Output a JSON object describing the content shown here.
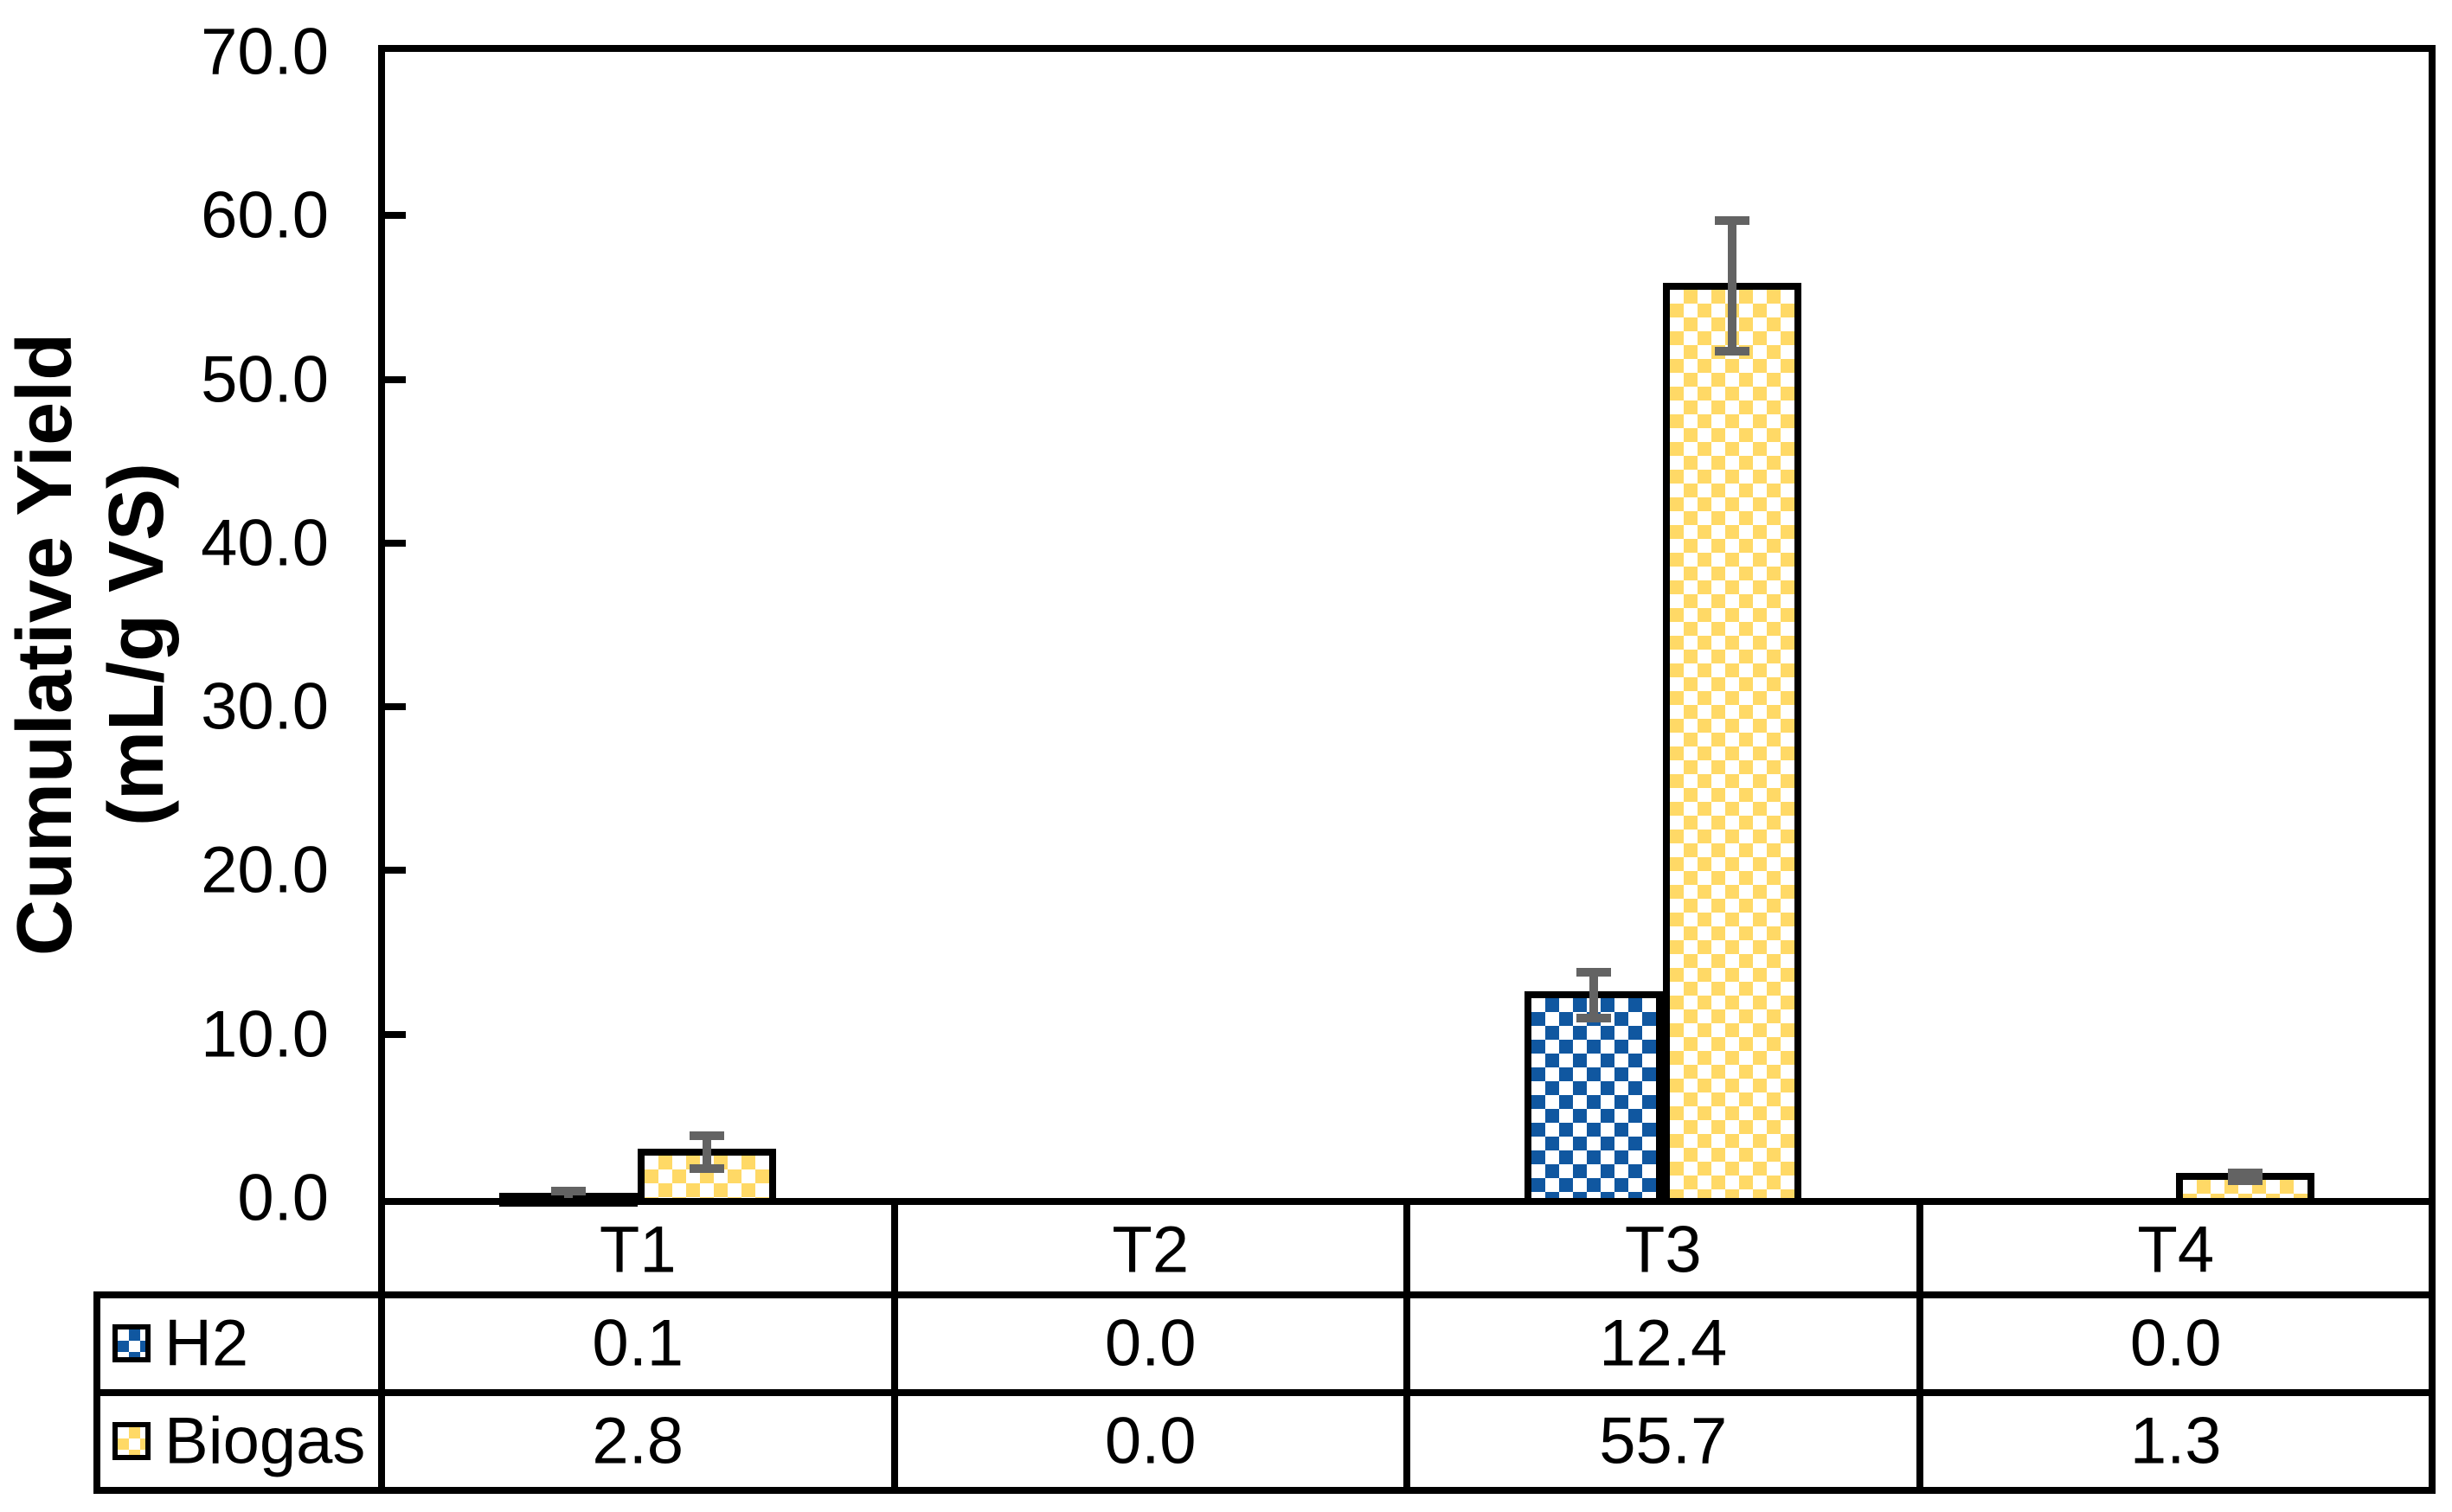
{
  "chart_data": {
    "type": "bar",
    "title": "",
    "ylabel_lines": [
      "Cumulative Yield",
      "(mL/g VS)"
    ],
    "categories": [
      "T1",
      "T2",
      "T3",
      "T4"
    ],
    "series": [
      {
        "name": "H2",
        "color": "#1057A0",
        "pattern": "checkerboard",
        "values": [
          0.1,
          0.0,
          12.4,
          0.0
        ],
        "errors": [
          0.3,
          0,
          1.4,
          0
        ]
      },
      {
        "name": "Biogas",
        "color": "#FFD966",
        "pattern": "checkerboard",
        "values": [
          2.8,
          0.0,
          55.7,
          1.3
        ],
        "errors": [
          1.0,
          0,
          4.0,
          0.25
        ]
      }
    ],
    "ylim": [
      0,
      70
    ],
    "ytick_step": 10,
    "ytick_labels": [
      "0.0",
      "10.0",
      "20.0",
      "30.0",
      "40.0",
      "50.0",
      "60.0",
      "70.0"
    ],
    "value_decimals": 1,
    "grid": false,
    "legend_position": "table-left-column",
    "error_bar_color": "#636363",
    "outline_color": "#000000",
    "plot_background": "#FFFFFF"
  }
}
